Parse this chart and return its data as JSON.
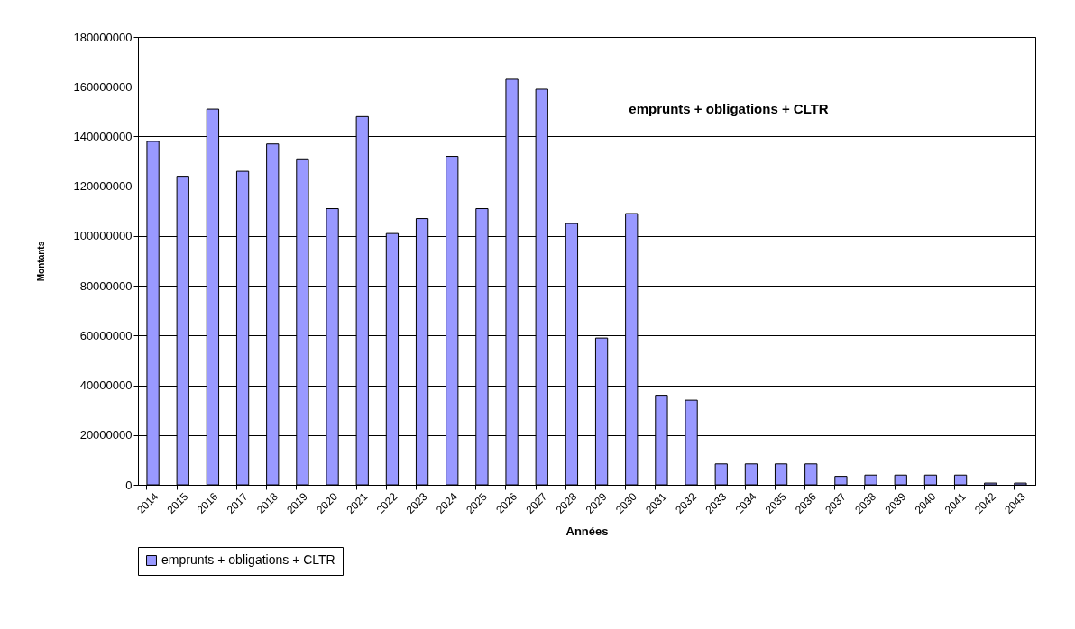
{
  "chart_data": {
    "type": "bar",
    "xlabel": "Années",
    "ylabel": "Montants",
    "annotations": [
      "emprunts + obligations + CLTR"
    ],
    "categories": [
      "2014",
      "2015",
      "2016",
      "2017",
      "2018",
      "2019",
      "2020",
      "2021",
      "2022",
      "2023",
      "2024",
      "2025",
      "2026",
      "2027",
      "2028",
      "2029",
      "2030",
      "2031",
      "2032",
      "2033",
      "2034",
      "2035",
      "2036",
      "2037",
      "2038",
      "2039",
      "2040",
      "2041",
      "2042",
      "2043"
    ],
    "series": [
      {
        "name": "emprunts + obligations + CLTR",
        "color": "#9999ff",
        "values": [
          138000000,
          124000000,
          151000000,
          126000000,
          137000000,
          131000000,
          111000000,
          148000000,
          101000000,
          107000000,
          132000000,
          111000000,
          163000000,
          159000000,
          105000000,
          59000000,
          109000000,
          36000000,
          34000000,
          8400000,
          8400000,
          8400000,
          8400000,
          3400000,
          3900000,
          3900000,
          3900000,
          3900000,
          700000,
          700000
        ]
      }
    ],
    "ylim": [
      0,
      180000000
    ],
    "yticks": [
      0,
      20000000,
      40000000,
      60000000,
      80000000,
      100000000,
      120000000,
      140000000,
      160000000,
      180000000
    ],
    "grid": "y",
    "legend": "bottom"
  }
}
